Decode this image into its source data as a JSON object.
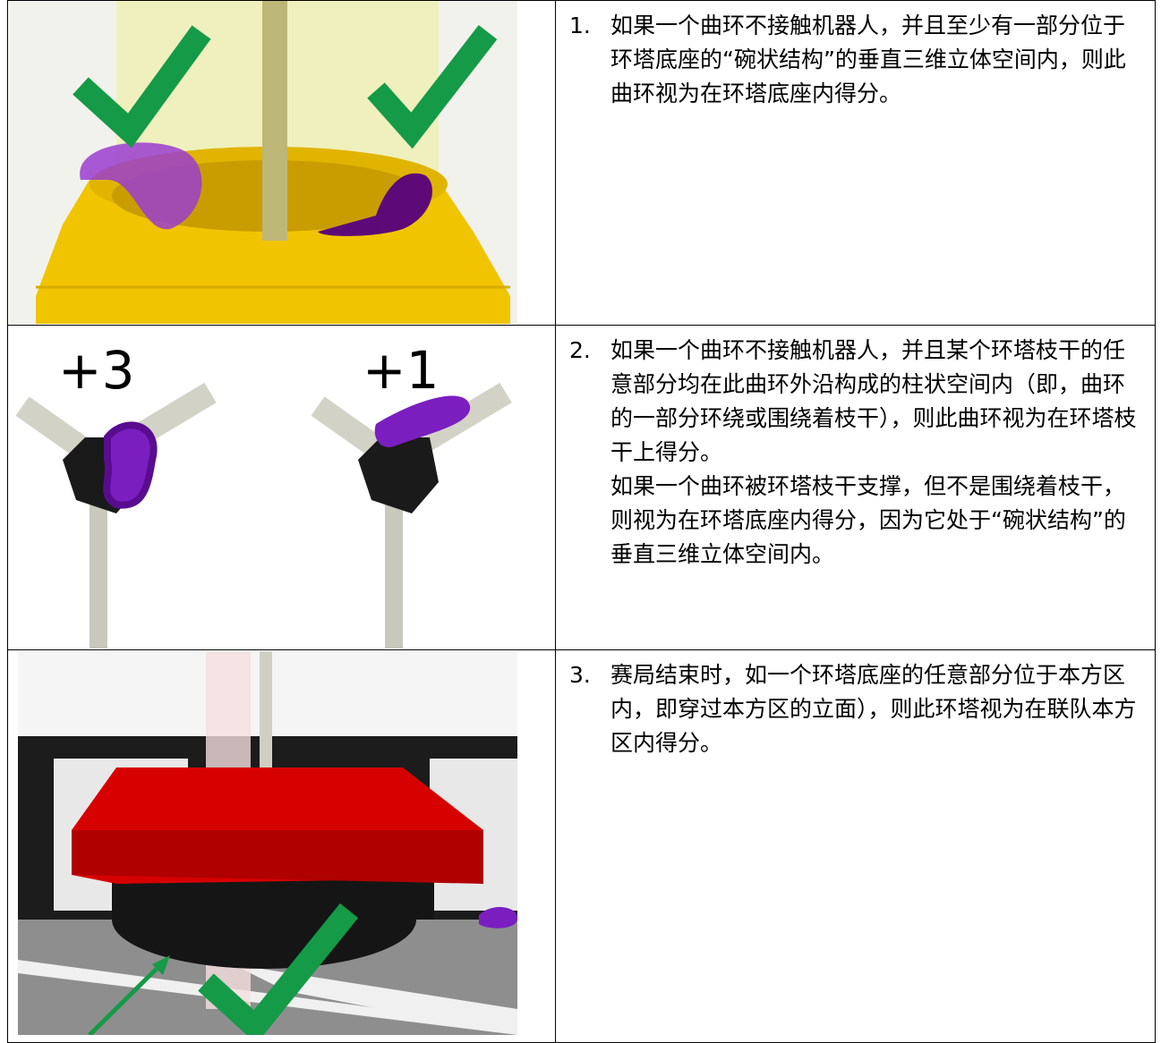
{
  "table": {
    "rows": [
      {
        "number": "1.",
        "paragraphs": [
          "如果一个曲环不接触机器人，并且至少有一部分位于环塔底座的“碗状结构”的垂直三维立体空间内，则此曲环视为在环塔底座内得分。"
        ]
      },
      {
        "number": "2.",
        "image_labels": [
          "+3",
          "+1"
        ],
        "paragraphs": [
          "如果一个曲环不接触机器人，并且某个环塔枝干的任意部分均在此曲环外沿构成的柱状空间内（即，曲环的一部分环绕或围绕着枝干），则此曲环视为在环塔枝干上得分。",
          "如果一个曲环被环塔枝干支撑，但不是围绕着枝干，则视为在环塔底座内得分，因为它处于“碗状结构”的垂直三维立体空间内。"
        ]
      },
      {
        "number": "3.",
        "paragraphs": [
          "赛局结束时，如一个环塔底座的任意部分位于本方区内，即穿过本方区的立面），则此环塔视为在联队本方区内得分。"
        ]
      }
    ]
  }
}
